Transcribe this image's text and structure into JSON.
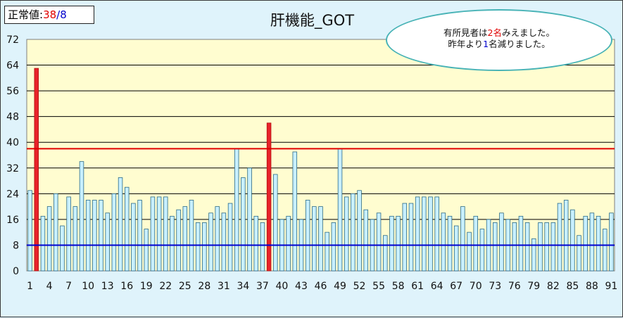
{
  "legend": {
    "prefix": "正常値:",
    "normal": "38",
    "separator": "/",
    "total": "8"
  },
  "callout": {
    "line1_pre": "有所見者は",
    "line1_num": "2名",
    "line1_post": "みえました。",
    "line2_pre": "昨年より",
    "line2_num": "1",
    "line2_post": "名減りました。"
  },
  "colors": {
    "normal_bar": "#c8f0ff",
    "high_bar": "#e8232a",
    "upper_line": "#e00000",
    "lower_line": "#0000d0",
    "plot_bg": "#fffdd0"
  },
  "chart_data": {
    "type": "bar",
    "title": "肝機能_GOT",
    "ylim": [
      0,
      72
    ],
    "yticks": [
      0,
      8,
      16,
      24,
      32,
      40,
      48,
      56,
      64,
      72
    ],
    "xtick_labels": [
      "1",
      "4",
      "7",
      "10",
      "13",
      "16",
      "19",
      "22",
      "25",
      "28",
      "31",
      "34",
      "37",
      "40",
      "43",
      "46",
      "49",
      "52",
      "55",
      "58",
      "61",
      "64",
      "67",
      "70",
      "73",
      "76",
      "79",
      "82",
      "85",
      "88",
      "91"
    ],
    "reference_lines": [
      {
        "value": 38,
        "color": "#e00000"
      },
      {
        "value": 8,
        "color": "#0000d0"
      }
    ],
    "threshold": 38,
    "values": [
      25,
      63,
      17,
      20,
      24,
      14,
      23,
      20,
      34,
      22,
      22,
      22,
      18,
      24,
      29,
      26,
      21,
      22,
      13,
      23,
      23,
      23,
      17,
      19,
      20,
      22,
      15,
      15,
      18,
      20,
      18,
      21,
      38,
      29,
      32,
      17,
      15,
      46,
      30,
      16,
      17,
      37,
      16,
      22,
      20,
      20,
      12,
      15,
      38,
      23,
      24,
      25,
      19,
      16,
      18,
      11,
      17,
      17,
      21,
      21,
      23,
      23,
      23,
      23,
      18,
      17,
      14,
      20,
      12,
      17,
      13,
      16,
      15,
      18,
      16,
      15,
      17,
      15,
      10,
      15,
      15,
      15,
      21,
      22,
      19,
      11,
      17,
      18,
      17,
      13,
      18
    ]
  }
}
